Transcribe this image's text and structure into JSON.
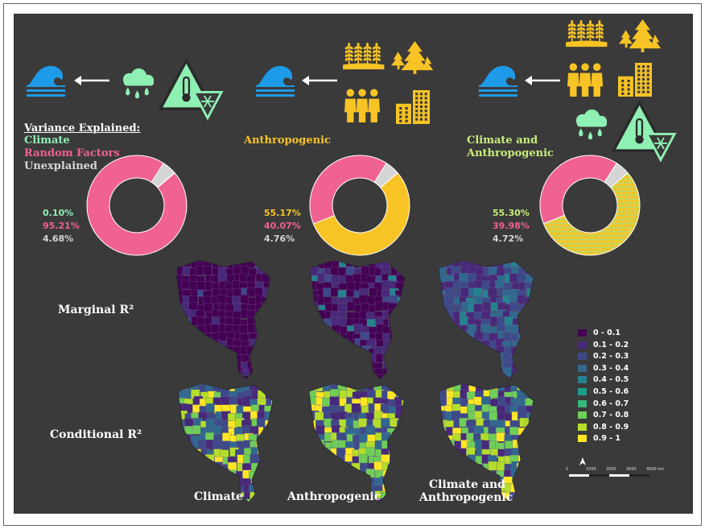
{
  "colors": {
    "climate": "#8ff0b4",
    "random": "#f06292",
    "unexplained": "#d5d5d5",
    "anthropogenic": "#f7c325",
    "combo": "#c8ee7a",
    "panel_bg": "#3a3a3a",
    "icon_blue": "#1e9be8"
  },
  "variance": {
    "heading": "Variance Explained:",
    "legend": [
      "Climate",
      "Random Factors",
      "Unexplained"
    ]
  },
  "panels": [
    {
      "id": "climate",
      "title": "",
      "values": [
        "0.10%",
        "95.21%",
        "4.68%"
      ],
      "explained": 0.1,
      "random": 95.21,
      "unexplained": 4.68
    },
    {
      "id": "anthropogenic",
      "title": "Anthropogenic",
      "values": [
        "55.17%",
        "40.07%",
        "4.76%"
      ],
      "explained": 55.17,
      "random": 40.07,
      "unexplained": 4.76
    },
    {
      "id": "combined",
      "title": "Climate and Anthropogenic",
      "values": [
        "55.30%",
        "39.98%",
        "4.72%"
      ],
      "explained": 55.3,
      "random": 39.98,
      "unexplained": 4.72
    }
  ],
  "rows": {
    "marginal": "Marginal R²",
    "conditional": "Conditional R²"
  },
  "columns": {
    "climate": "Climate",
    "anthropogenic": "Anthropogenic",
    "combined_line1": "Climate and",
    "combined_line2": "Anthropogenic"
  },
  "legend": [
    {
      "label": "0 - 0.1",
      "color": "#440154"
    },
    {
      "label": "0.1 - 0.2",
      "color": "#482878"
    },
    {
      "label": "0.2 - 0.3",
      "color": "#3e4989"
    },
    {
      "label": "0.3 - 0.4",
      "color": "#31688e"
    },
    {
      "label": "0.4 - 0.5",
      "color": "#26828e"
    },
    {
      "label": "0.5 - 0.6",
      "color": "#1f9e89"
    },
    {
      "label": "0.6 - 0.7",
      "color": "#35b779"
    },
    {
      "label": "0.7 - 0.8",
      "color": "#6ece58"
    },
    {
      "label": "0.8 - 0.9",
      "color": "#b5de2b"
    },
    {
      "label": "0.9 - 1",
      "color": "#fde725"
    }
  ],
  "scalebar": {
    "ticks": [
      "0",
      "1000",
      "2000",
      "3000",
      "4000 km"
    ]
  },
  "icons": [
    "wave-icon",
    "arrow-left-icon",
    "rain-cloud-icon",
    "temperature-warning-icon",
    "crops-icon",
    "forest-icon",
    "people-icon",
    "buildings-icon",
    "north-arrow-icon"
  ]
}
